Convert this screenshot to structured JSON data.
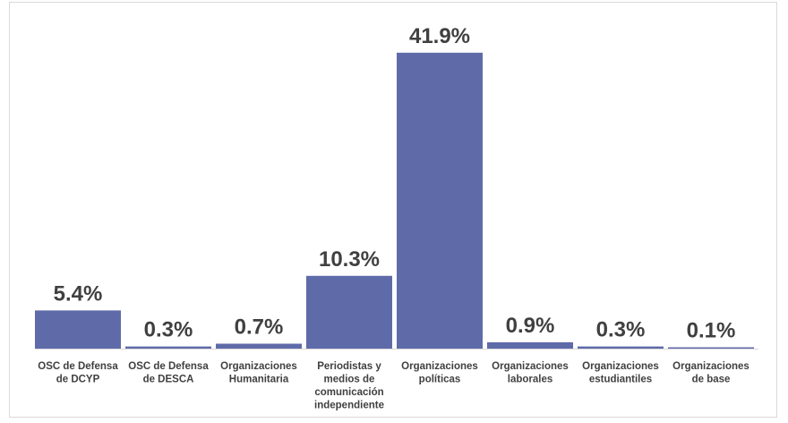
{
  "chart_data": {
    "type": "bar",
    "title": "",
    "xlabel": "",
    "ylabel": "",
    "ylim": [
      0,
      45
    ],
    "grid": false,
    "legend": "none",
    "bar_color": "#5f6ba9",
    "categories": [
      [
        "OSC de Defensa",
        "de DCYP"
      ],
      [
        "OSC de Defensa",
        "de DESCA"
      ],
      [
        "Organizaciones",
        "Humanitaria"
      ],
      [
        "Periodistas y",
        "medios de",
        "comunicación",
        "independiente"
      ],
      [
        "Organizaciones",
        "políticas"
      ],
      [
        "Organizaciones",
        "laborales"
      ],
      [
        "Organizaciones",
        "estudiantiles"
      ],
      [
        "Organizaciones",
        "de base"
      ]
    ],
    "values": [
      5.4,
      0.3,
      0.7,
      10.3,
      41.9,
      0.9,
      0.3,
      0.1
    ],
    "data_labels": [
      "5.4%",
      "0.3%",
      "0.7%",
      "10.3%",
      "41.9%",
      "0.9%",
      "0.3%",
      "0.1%"
    ]
  }
}
